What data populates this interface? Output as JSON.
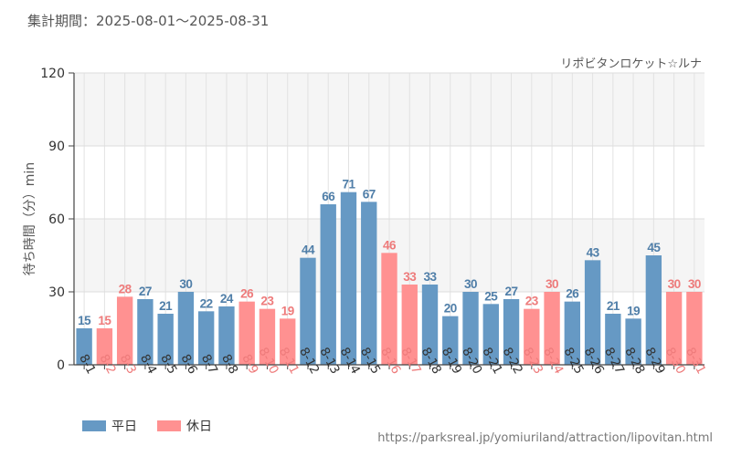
{
  "header": {
    "period_label": "集計期間：2025-08-01〜2025-08-31"
  },
  "legend": {
    "weekday_label": "平日",
    "holiday_label": "休日"
  },
  "source": {
    "url_text": "https://parksreal.jp/yomiuriland/attraction/lipovitan.html"
  },
  "colors": {
    "weekday": "#6699C4",
    "holiday": "#FF9191",
    "weekday_text": "#4F7EA8",
    "holiday_text": "#EE7B7B"
  },
  "chart_data": {
    "type": "bar",
    "title": "リポビタンロケット☆ルナ",
    "ylabel": "待ち時間（分）min",
    "xlabel": "",
    "ylim": [
      0,
      120
    ],
    "yticks": [
      0,
      30,
      60,
      90,
      120
    ],
    "grid": true,
    "legend_position": "bottom-left",
    "categories": [
      "8-1",
      "8-2",
      "8-3",
      "8-4",
      "8-5",
      "8-6",
      "8-7",
      "8-8",
      "8-9",
      "8-10",
      "8-11",
      "8-12",
      "8-13",
      "8-14",
      "8-15",
      "8-16",
      "8-17",
      "8-18",
      "8-19",
      "8-20",
      "8-21",
      "8-22",
      "8-23",
      "8-24",
      "8-25",
      "8-26",
      "8-27",
      "8-28",
      "8-29",
      "8-30",
      "8-31"
    ],
    "values": [
      15,
      15,
      28,
      27,
      21,
      30,
      22,
      24,
      26,
      23,
      19,
      44,
      66,
      71,
      67,
      46,
      33,
      33,
      20,
      30,
      25,
      27,
      23,
      30,
      26,
      43,
      21,
      19,
      45,
      30,
      30
    ],
    "day_type": [
      "平日",
      "休日",
      "休日",
      "平日",
      "平日",
      "平日",
      "平日",
      "平日",
      "休日",
      "休日",
      "休日",
      "平日",
      "平日",
      "平日",
      "平日",
      "休日",
      "休日",
      "平日",
      "平日",
      "平日",
      "平日",
      "平日",
      "休日",
      "休日",
      "平日",
      "平日",
      "平日",
      "平日",
      "平日",
      "休日",
      "休日"
    ]
  }
}
